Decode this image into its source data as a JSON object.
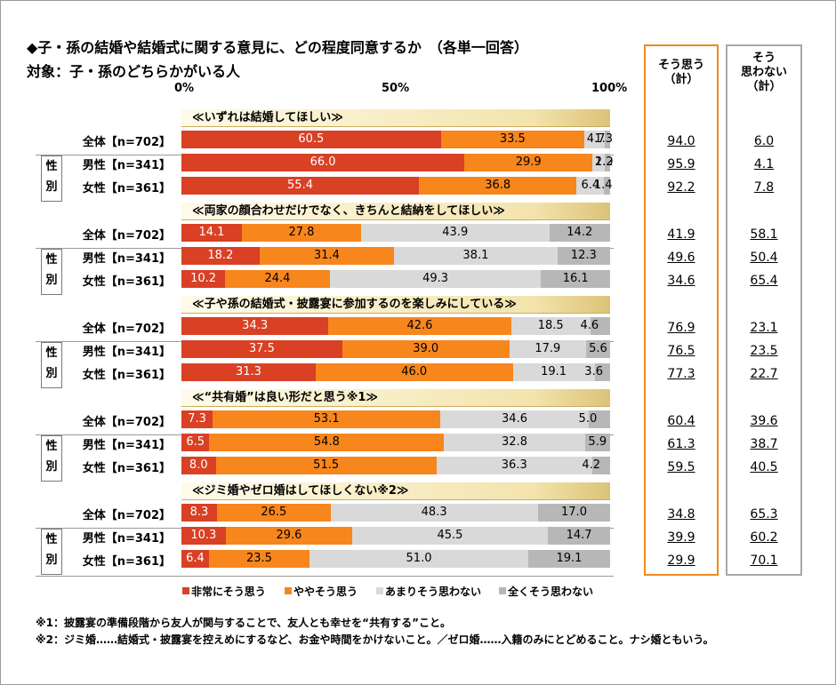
{
  "title": "◆子・孫の結婚や結婚式に関する意見に、どの程度同意するか　（各単一回答）",
  "subtitle": "対象：子・孫のどちらかがいる人",
  "axis_ticks": [
    "0%",
    "50%",
    "100%"
  ],
  "sum_header_agree": "そう思う\n（計）",
  "sum_header_disagree": "そう\n思わない\n（計）",
  "gender_label": "性\n別",
  "colors": {
    "strongly_agree": "#d94024",
    "somewhat_agree": "#f7861d",
    "somewhat_disagree": "#d9d9d9",
    "strongly_disagree": "#b7b7b7",
    "agree_border": "#f08a1c",
    "disagree_border": "#a8a8a8"
  },
  "legend": [
    "非常にそう思う",
    "ややそう思う",
    "あまりそう思わない",
    "全くそう思わない"
  ],
  "notes": [
    "※1：披露宴の準備段階から友人が関与することで、友人とも幸せを“共有する”こと。",
    "※2：ジミ婚……結婚式・披露宴を控えめにするなど、お金や時間をかけないこと。／ゼロ婚……入籍のみにとどめること。ナシ婚ともいう。"
  ],
  "chart_data": {
    "type": "bar",
    "stacked": true,
    "orientation": "horizontal",
    "xlim": [
      0,
      100
    ],
    "series_names": [
      "非常にそう思う",
      "ややそう思う",
      "あまりそう思わない",
      "全くそう思わない"
    ],
    "groups": [
      {
        "title": "≪いずれは結婚してほしい≫",
        "rows": [
          {
            "label": "全体【n=702】",
            "values": [
              60.5,
              33.5,
              4.7,
              1.3
            ],
            "agree_total": "94.0",
            "disagree_total": "6.0"
          },
          {
            "label": "男性【n=341】",
            "values": [
              66.0,
              29.9,
              2.9,
              1.2
            ],
            "agree_total": "95.9",
            "disagree_total": "4.1"
          },
          {
            "label": "女性【n=361】",
            "values": [
              55.4,
              36.8,
              6.4,
              1.4
            ],
            "agree_total": "92.2",
            "disagree_total": "7.8"
          }
        ]
      },
      {
        "title": "≪両家の顔合わせだけでなく、きちんと結納をしてほしい≫",
        "rows": [
          {
            "label": "全体【n=702】",
            "values": [
              14.1,
              27.8,
              43.9,
              14.2
            ],
            "agree_total": "41.9",
            "disagree_total": "58.1"
          },
          {
            "label": "男性【n=341】",
            "values": [
              18.2,
              31.4,
              38.1,
              12.3
            ],
            "agree_total": "49.6",
            "disagree_total": "50.4"
          },
          {
            "label": "女性【n=361】",
            "values": [
              10.2,
              24.4,
              49.3,
              16.1
            ],
            "agree_total": "34.6",
            "disagree_total": "65.4"
          }
        ]
      },
      {
        "title": "≪子や孫の結婚式・披露宴に参加するのを楽しみにしている≫",
        "rows": [
          {
            "label": "全体【n=702】",
            "values": [
              34.3,
              42.6,
              18.5,
              4.6
            ],
            "agree_total": "76.9",
            "disagree_total": "23.1"
          },
          {
            "label": "男性【n=341】",
            "values": [
              37.5,
              39.0,
              17.9,
              5.6
            ],
            "agree_total": "76.5",
            "disagree_total": "23.5"
          },
          {
            "label": "女性【n=361】",
            "values": [
              31.3,
              46.0,
              19.1,
              3.6
            ],
            "agree_total": "77.3",
            "disagree_total": "22.7"
          }
        ]
      },
      {
        "title": "≪“共有婚”は良い形だと思う※1≫",
        "rows": [
          {
            "label": "全体【n=702】",
            "values": [
              7.3,
              53.1,
              34.6,
              5.0
            ],
            "agree_total": "60.4",
            "disagree_total": "39.6"
          },
          {
            "label": "男性【n=341】",
            "values": [
              6.5,
              54.8,
              32.8,
              5.9
            ],
            "agree_total": "61.3",
            "disagree_total": "38.7"
          },
          {
            "label": "女性【n=361】",
            "values": [
              8.0,
              51.5,
              36.3,
              4.2
            ],
            "agree_total": "59.5",
            "disagree_total": "40.5"
          }
        ]
      },
      {
        "title": "≪ジミ婚やゼロ婚はしてほしくない※2≫",
        "rows": [
          {
            "label": "全体【n=702】",
            "values": [
              8.3,
              26.5,
              48.3,
              17.0
            ],
            "agree_total": "34.8",
            "disagree_total": "65.3"
          },
          {
            "label": "男性【n=341】",
            "values": [
              10.3,
              29.6,
              45.5,
              14.7
            ],
            "agree_total": "39.9",
            "disagree_total": "60.2"
          },
          {
            "label": "女性【n=361】",
            "values": [
              6.4,
              23.5,
              51.0,
              19.1
            ],
            "agree_total": "29.9",
            "disagree_total": "70.1"
          }
        ]
      }
    ]
  }
}
